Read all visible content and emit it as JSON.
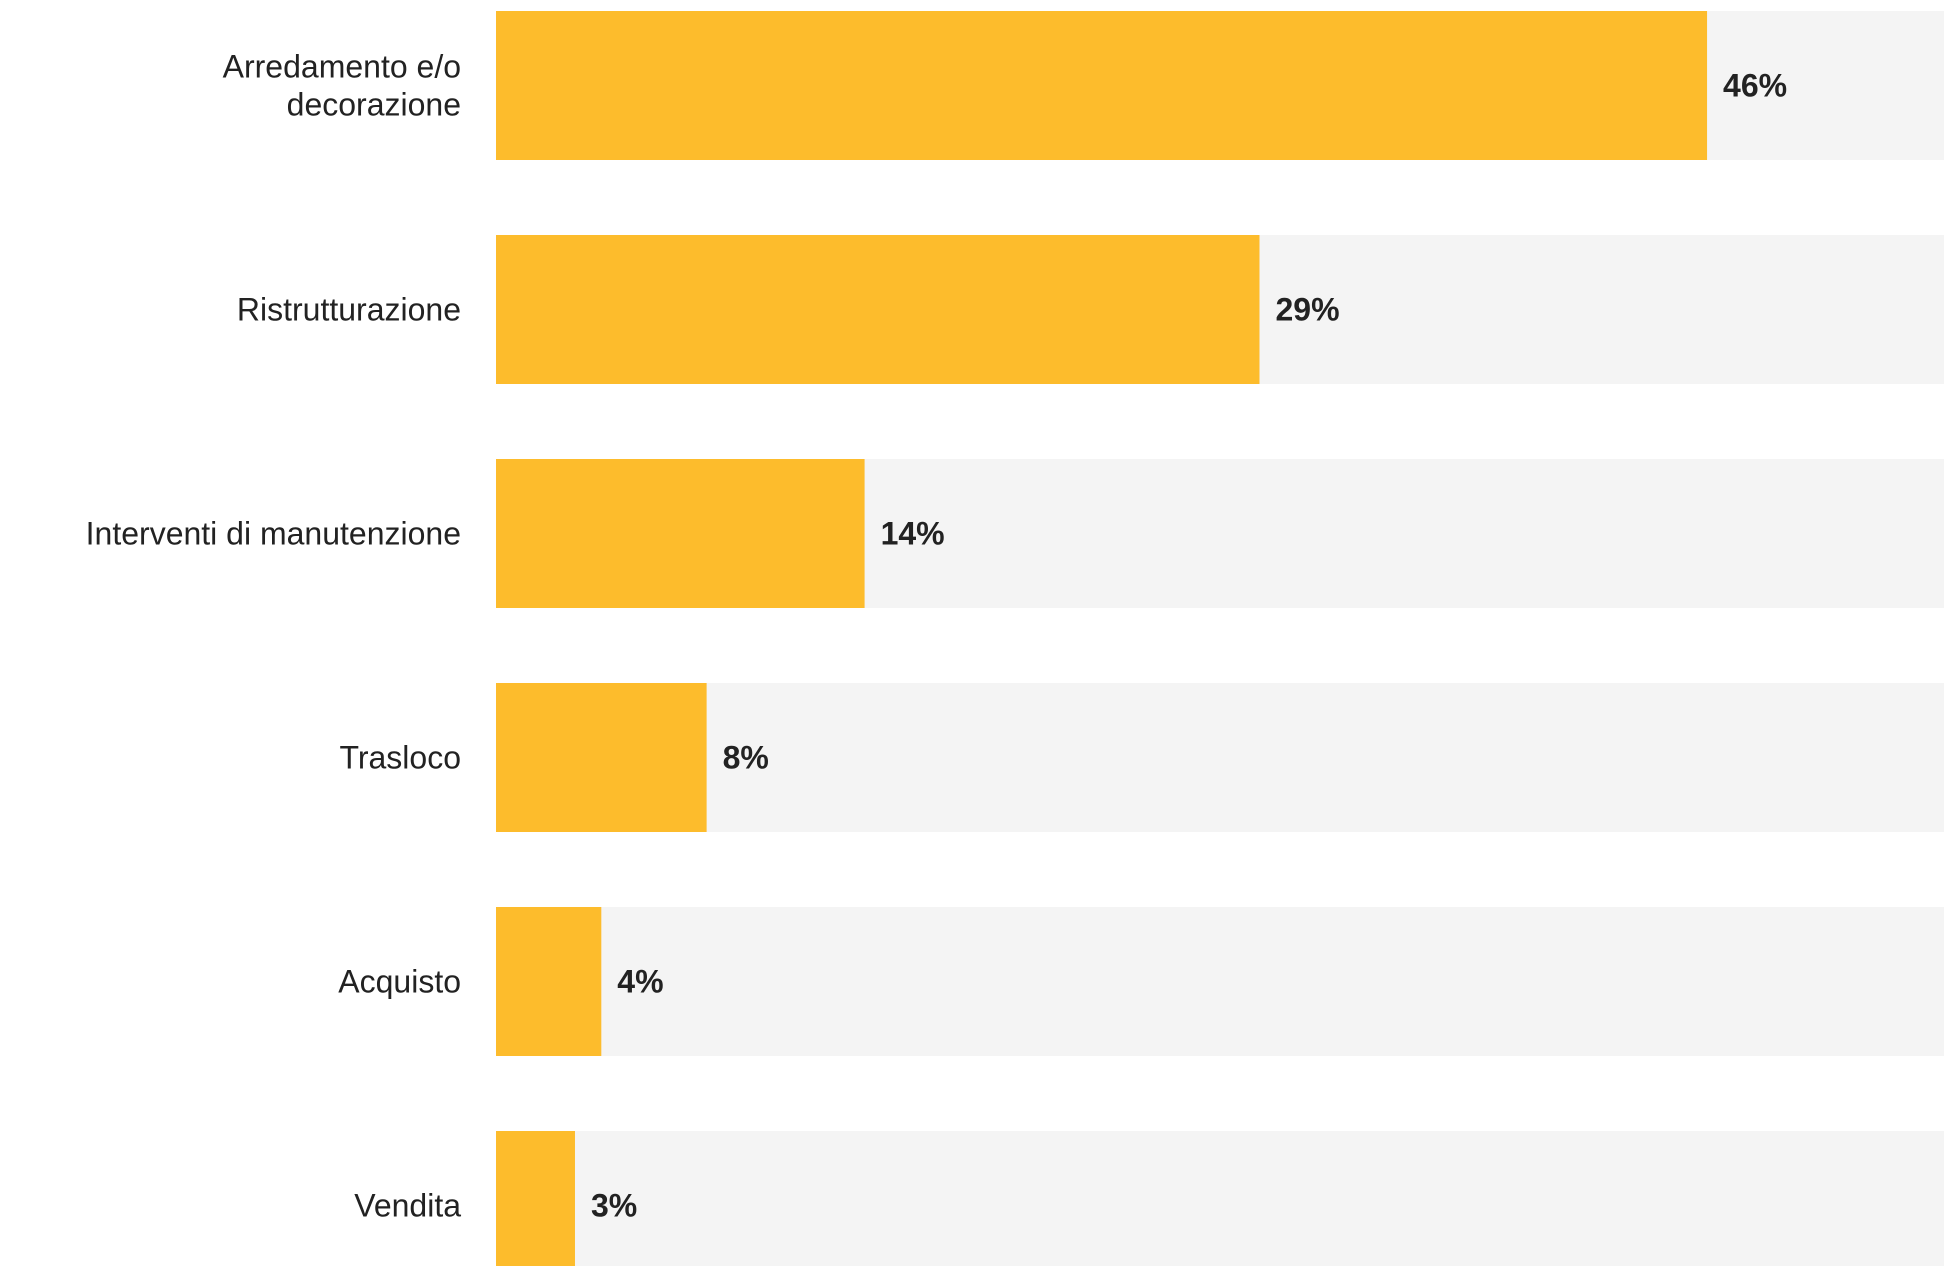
{
  "chart_data": {
    "type": "bar",
    "orientation": "horizontal",
    "categories": [
      "Arredamento e/o decorazione",
      "Ristrutturazione",
      "Interventi di manutenzione",
      "Trasloco",
      "Acquisto",
      "Vendita"
    ],
    "category_lines": [
      [
        "Arredamento e/o",
        "decorazione"
      ],
      [
        "Ristrutturazione"
      ],
      [
        "Interventi di manutenzione"
      ],
      [
        "Trasloco"
      ],
      [
        "Acquisto"
      ],
      [
        "Vendita"
      ]
    ],
    "values": [
      46,
      29,
      14,
      8,
      4,
      3
    ],
    "value_labels": [
      "46%",
      "29%",
      "14%",
      "8%",
      "4%",
      "3%"
    ],
    "unit": "%",
    "xlim": [
      0,
      55
    ],
    "title": "",
    "xlabel": "",
    "ylabel": "",
    "grid": false,
    "legend": "none",
    "colors": {
      "bar": "#FDBC2C",
      "track": "#F4F4F4",
      "text": "#222222"
    }
  }
}
